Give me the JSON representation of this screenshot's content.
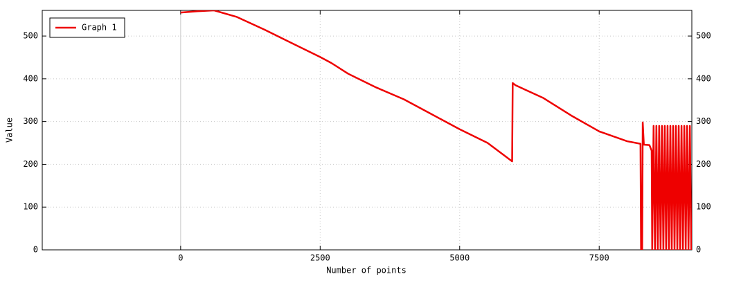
{
  "chart_data": {
    "type": "line",
    "x_label": "Number of points",
    "y_label": "Value",
    "xlim": [
      -2480,
      9160
    ],
    "ylim": [
      0,
      560
    ],
    "xticks": [
      0,
      2500,
      5000,
      7500
    ],
    "yticks": [
      0,
      100,
      200,
      300,
      400,
      500
    ],
    "grid": true,
    "legend": "upper left",
    "x": [
      0,
      300,
      600,
      1000,
      1500,
      2000,
      2500,
      2700,
      3000,
      3500,
      4000,
      4500,
      5000,
      5500,
      5940,
      5950,
      6000,
      6500,
      7000,
      7500,
      8000,
      8240,
      8250,
      8270,
      8280,
      8300,
      8400,
      8440,
      8450,
      8475,
      8500,
      8525,
      8550,
      8575,
      8600,
      8625,
      8650,
      8675,
      8700,
      8725,
      8750,
      8775,
      8800,
      8825,
      8850,
      8875,
      8900,
      8925,
      8950,
      8975,
      9000,
      9025,
      9050,
      9075,
      9100,
      9125,
      9150
    ],
    "series": [
      {
        "name": "Graph 1",
        "color": "#ee0000",
        "values": [
          555,
          558,
          560,
          545,
          515,
          483,
          451,
          437,
          412,
          380,
          352,
          317,
          282,
          250,
          207,
          390,
          385,
          355,
          314,
          277,
          254,
          248,
          0,
          0,
          298,
          246,
          245,
          232,
          0,
          290,
          0,
          290,
          0,
          290,
          0,
          290,
          0,
          290,
          0,
          290,
          0,
          290,
          0,
          290,
          0,
          290,
          0,
          290,
          0,
          290,
          0,
          290,
          0,
          290,
          0,
          290,
          0
        ]
      }
    ]
  }
}
